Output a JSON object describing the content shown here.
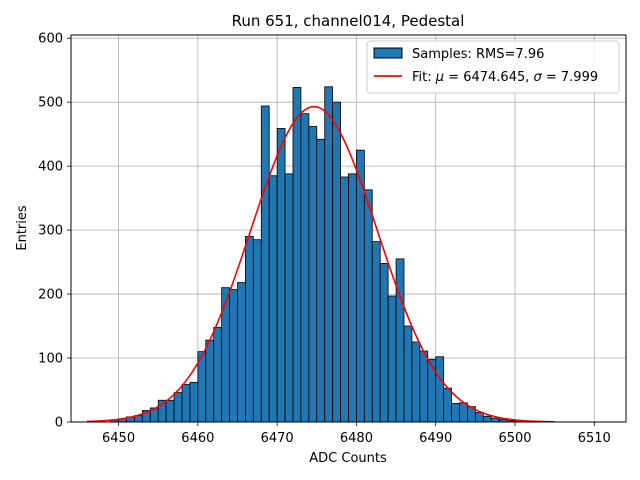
{
  "chart_data": {
    "type": "bar",
    "title": "Run 651, channel014, Pedestal",
    "xlabel": "ADC Counts",
    "ylabel": "Entries",
    "xlim": [
      6444,
      6514
    ],
    "ylim": [
      0,
      605
    ],
    "xticks": [
      "6450",
      "6460",
      "6470",
      "6480",
      "6490",
      "6500",
      "6510"
    ],
    "yticks": [
      "0",
      "100",
      "200",
      "300",
      "400",
      "500",
      "600"
    ],
    "grid": true,
    "legend_position": "top-right",
    "histogram": {
      "name": "Samples: RMS=7.96",
      "color": "#1f77b4",
      "edge_color": "#000000",
      "bin_edges_start": 6449,
      "bin_width": 1,
      "counts": [
        3,
        5,
        8,
        10,
        18,
        22,
        34,
        34,
        46,
        59,
        62,
        110,
        128,
        148,
        210,
        207,
        218,
        290,
        285,
        494,
        385,
        459,
        388,
        523,
        482,
        462,
        442,
        524,
        500,
        383,
        388,
        425,
        363,
        282,
        248,
        197,
        255,
        150,
        125,
        111,
        98,
        102,
        53,
        29,
        30,
        24,
        15,
        9,
        6,
        4,
        2,
        1,
        1,
        1,
        1
      ]
    },
    "fit": {
      "name": "Fit: μ = 6474.645, σ = 7.999",
      "color": "#ff0000",
      "mu": 6474.645,
      "sigma": 7.999,
      "amplitude": 493,
      "x_range": [
        6446,
        6505
      ]
    }
  },
  "legend": {
    "samples_label": "Samples: RMS=7.96",
    "fit_label_prefix": "Fit: ",
    "fit_label_mu_symbol": "μ",
    "fit_label_mu_value": " = 6474.645, ",
    "fit_label_sigma_symbol": "σ",
    "fit_label_sigma_value": " = 7.999"
  }
}
